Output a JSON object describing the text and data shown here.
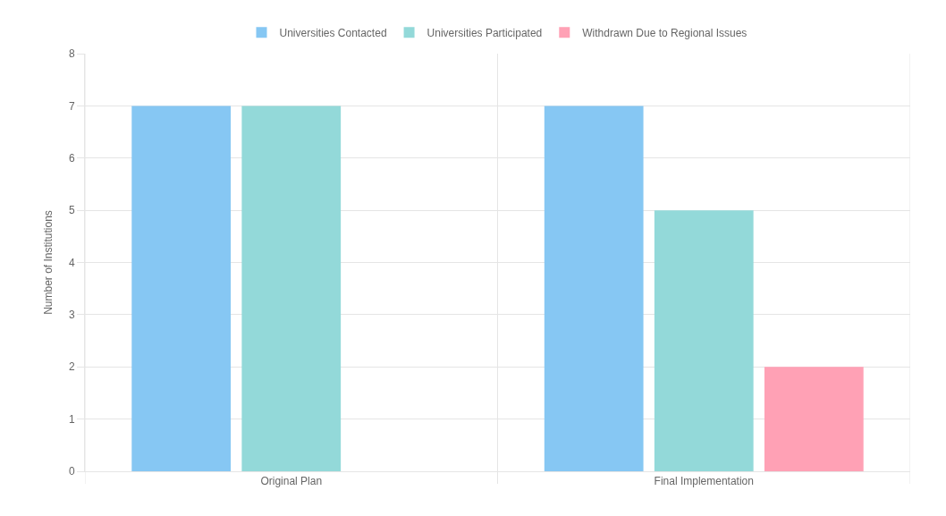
{
  "chart_data": {
    "type": "bar",
    "ylabel": "Number of Institutions",
    "categories": [
      "Original Plan",
      "Final Implementation"
    ],
    "series": [
      {
        "name": "Universities Contacted",
        "color": "#86c7f3",
        "values": [
          7,
          7
        ]
      },
      {
        "name": "Universities Participated",
        "color": "#93d9d9",
        "values": [
          7,
          5
        ]
      },
      {
        "name": "Withdrawn Due to Regional Issues",
        "color": "#ffa1b5",
        "values": [
          0,
          2
        ]
      }
    ],
    "ylim": [
      0,
      8
    ],
    "yticks": [
      0,
      1,
      2,
      3,
      4,
      5,
      6,
      7,
      8
    ],
    "grid": true,
    "legend": "top"
  }
}
